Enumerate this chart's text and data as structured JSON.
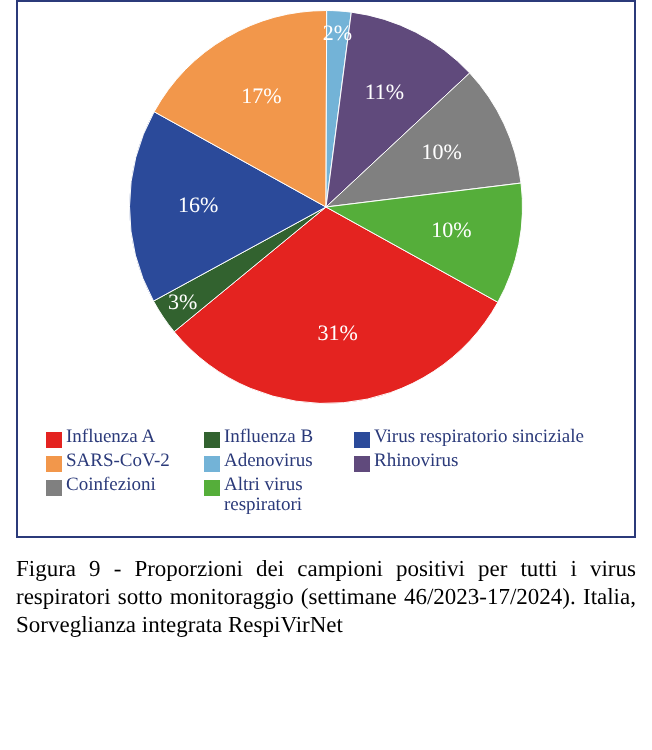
{
  "chart_data": {
    "type": "pie",
    "title": "Figura 9 - Proporzioni dei campioni positivi per tutti i virus respiratori sotto monitoraggio (settimane 46/2023-17/2024). Italia, Sorveglianza integrata RespiVirNet",
    "categories": [
      "Influenza A",
      "Influenza B",
      "Virus respiratorio sinciziale",
      "SARS-CoV-2",
      "Adenovirus",
      "Rhinovirus",
      "Coinfezioni",
      "Altri virus respiratori"
    ],
    "values": [
      31,
      3,
      16,
      17,
      2,
      11,
      10,
      10
    ],
    "value_labels": [
      "31%",
      "3%",
      "16%",
      "17%",
      "2%",
      "11%",
      "10%",
      "10%"
    ],
    "colors": [
      "#e42320",
      "#32622f",
      "#2b4a9a",
      "#f2974b",
      "#73b3d7",
      "#604a7c",
      "#808080",
      "#55ae3a"
    ],
    "legend": "bottom"
  }
}
